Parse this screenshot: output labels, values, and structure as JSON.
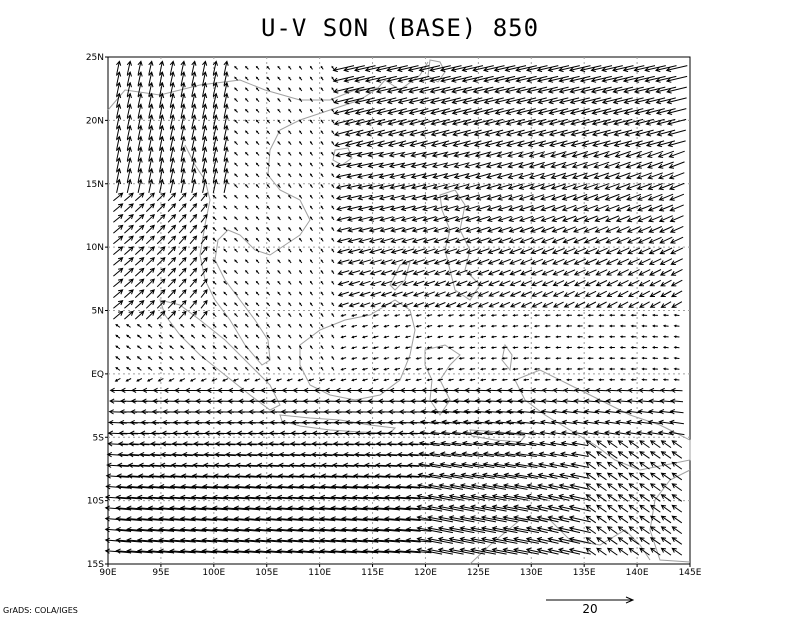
{
  "title": "U-V SON (BASE) 850",
  "credit": "GrADS: COLA/IGES",
  "chart_data": {
    "type": "vector",
    "lon_range": [
      90,
      145
    ],
    "lat_range": [
      -15,
      25
    ],
    "lon_ticks": [
      "90E",
      "95E",
      "100E",
      "105E",
      "110E",
      "115E",
      "120E",
      "125E",
      "130E",
      "135E",
      "140E",
      "145E"
    ],
    "lat_ticks": [
      "15S",
      "10S",
      "5S",
      "EQ",
      "5N",
      "10N",
      "15N",
      "20N",
      "25N"
    ],
    "grid": true,
    "reference_vector": {
      "magnitude": 20,
      "label": "20"
    },
    "colors": {
      "vector": "#000000",
      "coast": "#a0a0a0",
      "grid": "#a0a0a0",
      "frame": "#000000"
    }
  }
}
